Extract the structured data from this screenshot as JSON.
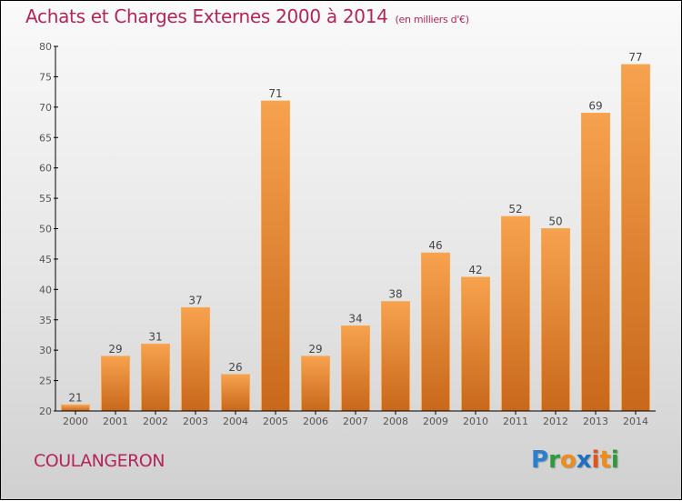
{
  "chart_data": {
    "type": "bar",
    "title": "Achats et Charges Externes 2000 à 2014",
    "subtitle": "(en milliers d'€)",
    "xlabel": "",
    "ylabel": "",
    "categories": [
      "2000",
      "2001",
      "2002",
      "2003",
      "2004",
      "2005",
      "2006",
      "2007",
      "2008",
      "2009",
      "2010",
      "2011",
      "2012",
      "2013",
      "2014"
    ],
    "values": [
      21,
      29,
      31,
      37,
      26,
      71,
      29,
      34,
      38,
      46,
      42,
      52,
      50,
      69,
      77
    ],
    "ylim": [
      20,
      80
    ],
    "yticks": [
      20,
      25,
      30,
      35,
      40,
      45,
      50,
      55,
      60,
      65,
      70,
      75,
      80
    ],
    "grid": false,
    "legend": "none",
    "bar_color_top": "#f7a24e",
    "bar_color_bottom": "#c8681a"
  },
  "header": {
    "title": "Achats et Charges Externes 2000 à 2014",
    "subtitle": "(en milliers d'€)"
  },
  "footer": {
    "commune": "COULANGERON",
    "logo_letters": [
      {
        "ch": "P",
        "color": "#2a7fd0"
      },
      {
        "ch": "r",
        "color": "#2e9a3a"
      },
      {
        "ch": "o",
        "color": "#f08c1a"
      },
      {
        "ch": "x",
        "color": "#1f6fc0"
      },
      {
        "ch": "i",
        "color": "#e8501a"
      },
      {
        "ch": "t",
        "color": "#f08c1a"
      },
      {
        "ch": "i",
        "color": "#2e9a3a"
      }
    ]
  }
}
